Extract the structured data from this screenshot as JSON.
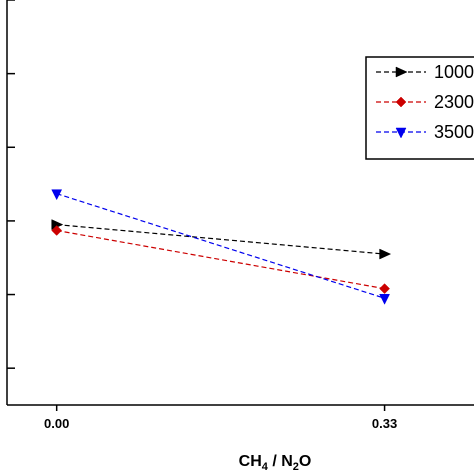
{
  "chart_data": {
    "type": "line",
    "title": "",
    "xlabel_main": "CH",
    "xlabel_sub1": "4",
    "xlabel_mid": " / N",
    "xlabel_sub2": "2",
    "xlabel_end": "O",
    "ylabel": "",
    "x": [
      0.0,
      0.33
    ],
    "x_tick_labels": [
      "0.00",
      "0.33"
    ],
    "xlim": [
      -0.05,
      0.42
    ],
    "ylim": [
      0,
      5.5
    ],
    "y_ticks": [
      0.5,
      1.5,
      2.5,
      3.5,
      4.5,
      5.5
    ],
    "legend_position": "top-right",
    "series": [
      {
        "name": "1000",
        "values": [
          2.45,
          2.05
        ],
        "color": "#000000",
        "marker": "triangle-right"
      },
      {
        "name": "2300",
        "values": [
          2.37,
          1.58
        ],
        "color": "#cc0000",
        "marker": "diamond"
      },
      {
        "name": "3500",
        "values": [
          2.87,
          1.45
        ],
        "color": "#0000ee",
        "marker": "triangle-down"
      }
    ]
  }
}
